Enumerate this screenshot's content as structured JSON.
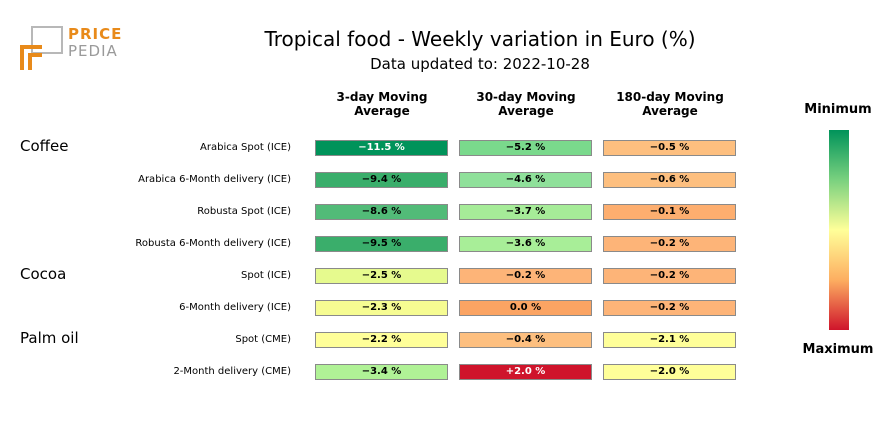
{
  "logo": {
    "line1": "PRICE",
    "line2": "PEDIA"
  },
  "chart_data": {
    "type": "heatmap",
    "title": "Tropical food - Weekly variation in Euro (%)",
    "subtitle": "Data updated to: 2022-10-28",
    "columns": [
      {
        "line1": "3-day Moving",
        "line2": "Average"
      },
      {
        "line1": "30-day Moving",
        "line2": "Average"
      },
      {
        "line1": "180-day Moving",
        "line2": "Average"
      }
    ],
    "groups": [
      {
        "name": "Coffee",
        "rows": [
          0,
          1,
          2,
          3
        ]
      },
      {
        "name": "Cocoa",
        "rows": [
          4,
          5
        ]
      },
      {
        "name": "Palm oil",
        "rows": [
          6,
          7
        ]
      }
    ],
    "rows": [
      {
        "label": "Arabica Spot (ICE)",
        "values": [
          -11.5,
          -5.2,
          -0.5
        ],
        "text": [
          "−11.5 %",
          "−5.2 %",
          "−0.5 %"
        ]
      },
      {
        "label": "Arabica 6-Month delivery (ICE)",
        "values": [
          -9.4,
          -4.6,
          -0.6
        ],
        "text": [
          "−9.4 %",
          "−4.6 %",
          "−0.6 %"
        ]
      },
      {
        "label": "Robusta Spot (ICE)",
        "values": [
          -8.6,
          -3.7,
          -0.1
        ],
        "text": [
          "−8.6 %",
          "−3.7 %",
          "−0.1 %"
        ]
      },
      {
        "label": "Robusta 6-Month delivery (ICE)",
        "values": [
          -9.5,
          -3.6,
          -0.2
        ],
        "text": [
          "−9.5 %",
          "−3.6 %",
          "−0.2 %"
        ]
      },
      {
        "label": "Spot (ICE)",
        "values": [
          -2.5,
          -0.2,
          -0.2
        ],
        "text": [
          "−2.5 %",
          "−0.2 %",
          "−0.2 %"
        ]
      },
      {
        "label": "6-Month delivery (ICE)",
        "values": [
          -2.3,
          0.0,
          -0.2
        ],
        "text": [
          "−2.3 %",
          "0.0 %",
          "−0.2 %"
        ]
      },
      {
        "label": "Spot (CME)",
        "values": [
          -2.2,
          -0.4,
          -2.1
        ],
        "text": [
          "−2.2 %",
          "−0.4 %",
          "−2.1 %"
        ]
      },
      {
        "label": "2-Month delivery (CME)",
        "values": [
          -3.4,
          2.0,
          -2.0
        ],
        "text": [
          "−3.4 %",
          "+2.0 %",
          "−2.0 %"
        ]
      }
    ],
    "colors": [
      [
        "#00935a",
        "#7ad98c",
        "#fdbf7f"
      ],
      [
        "#3aae6b",
        "#8fe09a",
        "#fdbf7f"
      ],
      [
        "#52bb78",
        "#a6ec98",
        "#fdae6f"
      ],
      [
        "#3aae6b",
        "#a8ee98",
        "#fdb478"
      ],
      [
        "#e6fa8e",
        "#fdb478",
        "#fdb478"
      ],
      [
        "#f6fc92",
        "#fba463",
        "#fdb478"
      ],
      [
        "#ffff99",
        "#fdbf7f",
        "#ffff99"
      ],
      [
        "#b0f296",
        "#cf142b",
        "#ffff99"
      ]
    ],
    "legend": {
      "min_label": "Minimum",
      "max_label": "Maximum",
      "colors": [
        "#00935a",
        "#ffff99",
        "#cf142b"
      ]
    }
  }
}
